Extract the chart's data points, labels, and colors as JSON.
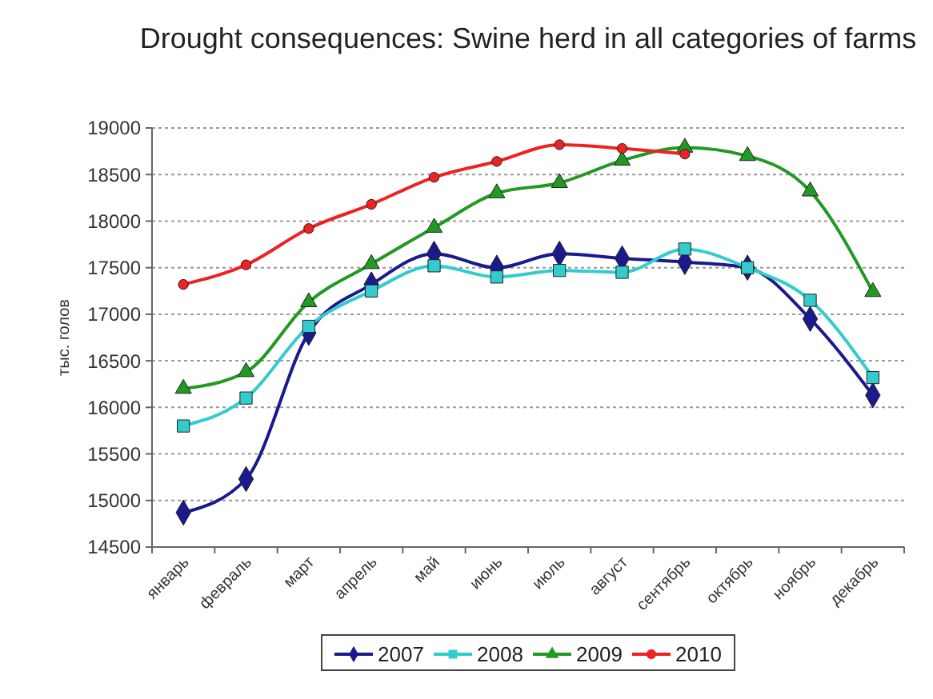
{
  "chart_data": {
    "type": "line",
    "title": "Drought consequences: Swine herd in all categories of farms",
    "ylabel": "тыс. голов",
    "categories": [
      "январь",
      "февраль",
      "март",
      "апрель",
      "май",
      "июнь",
      "июль",
      "август",
      "сентябрь",
      "октябрь",
      "ноябрь",
      "декабрь"
    ],
    "series": [
      {
        "name": "2007",
        "color": "#1a1a8c",
        "marker": "diamond",
        "values": [
          14870,
          15230,
          16800,
          17320,
          17650,
          17500,
          17650,
          17600,
          17560,
          17500,
          16950,
          16130
        ]
      },
      {
        "name": "2008",
        "color": "#33cccc",
        "marker": "square",
        "values": [
          15800,
          16100,
          16870,
          17250,
          17520,
          17400,
          17470,
          17450,
          17700,
          17500,
          17150,
          16320
        ]
      },
      {
        "name": "2009",
        "color": "#229922",
        "marker": "triangle",
        "values": [
          16200,
          16380,
          17130,
          17540,
          17930,
          18300,
          18410,
          18650,
          18790,
          18700,
          18320,
          17240
        ]
      },
      {
        "name": "2010",
        "color": "#ee2222",
        "marker": "circle",
        "values": [
          17320,
          17530,
          17920,
          18180,
          18470,
          18640,
          18820,
          18780,
          18720,
          null,
          null,
          null
        ]
      }
    ],
    "ylim": [
      14500,
      19000
    ],
    "yticks": [
      14500,
      15000,
      15500,
      16000,
      16500,
      17000,
      17500,
      18000,
      18500,
      19000
    ],
    "grid": "y",
    "legend": "bottom",
    "line_style": "solid"
  }
}
